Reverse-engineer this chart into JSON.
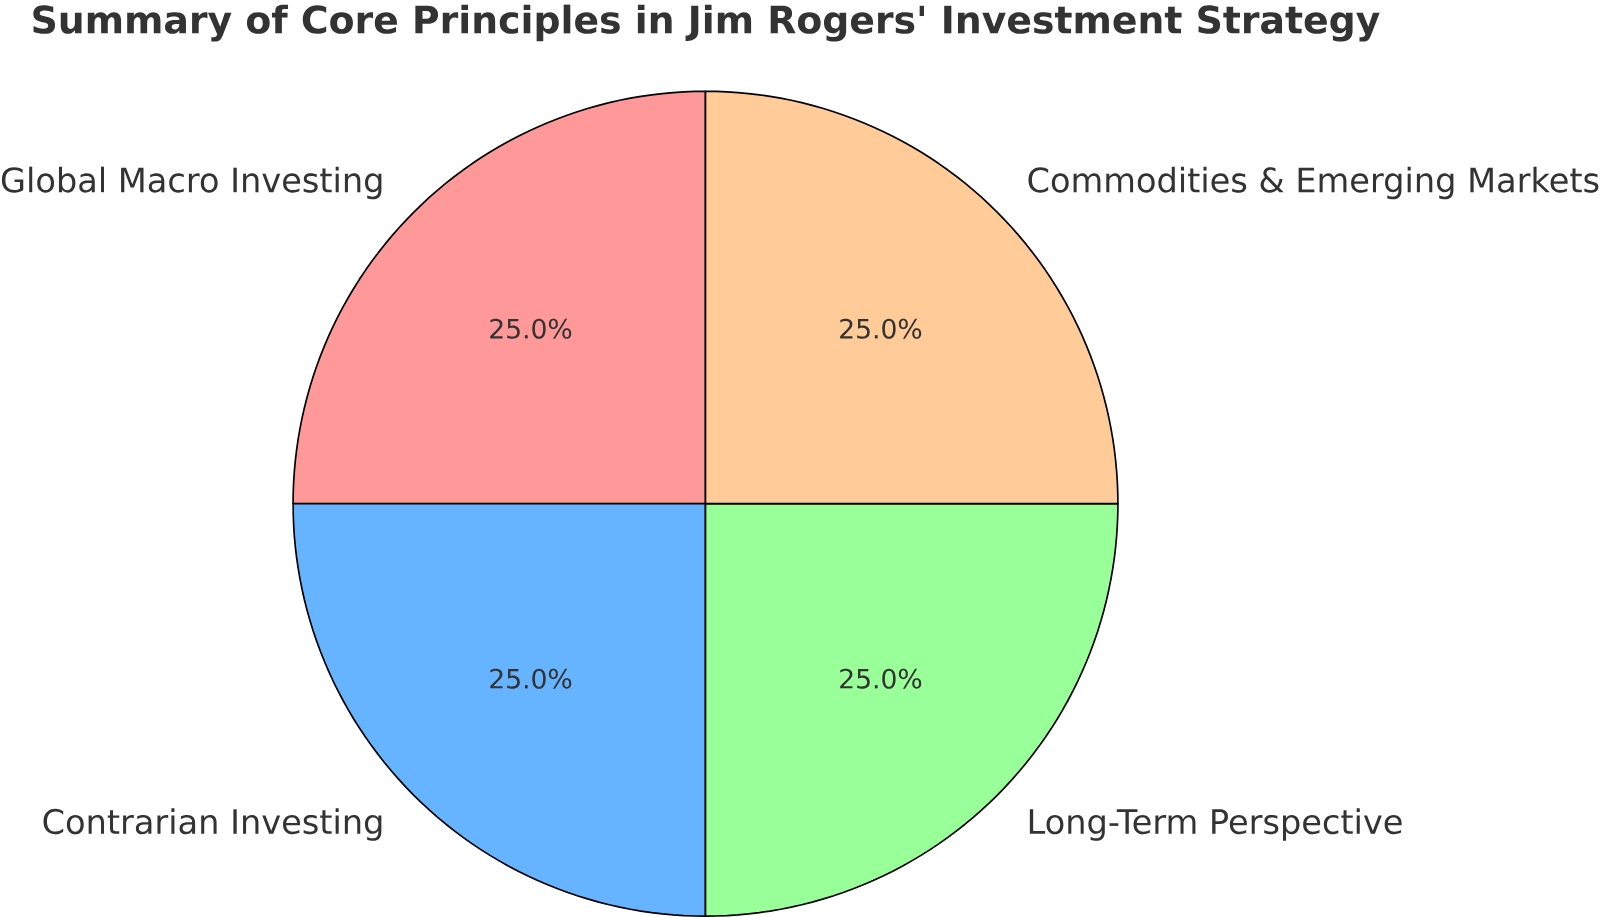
{
  "chart_data": {
    "type": "pie",
    "title": "Summary of Core Principles in Jim Rogers' Investment Strategy",
    "categories": [
      "Global Macro Investing",
      "Contrarian Investing",
      "Long-Term Perspective",
      "Commodities & Emerging Markets"
    ],
    "values": [
      25,
      25,
      25,
      25
    ],
    "colors": [
      "#ff9999",
      "#66b3ff",
      "#99ff99",
      "#ffcc99"
    ],
    "value_labels": [
      "25.0%",
      "25.0%",
      "25.0%",
      "25.0%"
    ]
  }
}
